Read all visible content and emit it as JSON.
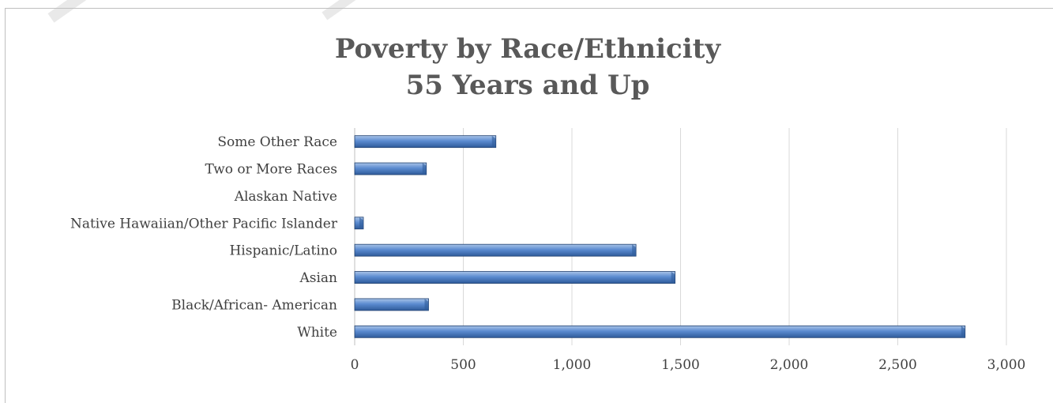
{
  "chart_data": {
    "type": "bar",
    "orientation": "horizontal",
    "title": "Poverty by Race/Ethnicity",
    "subtitle": "55 Years and Up",
    "categories": [
      "White",
      "Black/African- American",
      "Asian",
      "Hispanic/Latino",
      "Native Hawaiian/Other Pacific Islander",
      "Alaskan Native",
      "Two or More Races",
      "Some Other Race"
    ],
    "values": [
      2810,
      340,
      1475,
      1295,
      40,
      0,
      330,
      650
    ],
    "xlim": [
      0,
      3000
    ],
    "xticks": [
      0,
      500,
      1000,
      1500,
      2000,
      2500,
      3000
    ],
    "xtick_labels": [
      "0",
      "500",
      "1,000",
      "1,500",
      "2,000",
      "2,500",
      "3,000"
    ],
    "grid": "vertical",
    "legend": "none",
    "colors": {
      "bar_light": "#a9c4e8",
      "bar_mid": "#5b8bd0",
      "bar_dark": "#2f5b9a",
      "bar_edge": "#1f3f6e",
      "grid": "#d9d9d9",
      "title": "#595959"
    }
  }
}
